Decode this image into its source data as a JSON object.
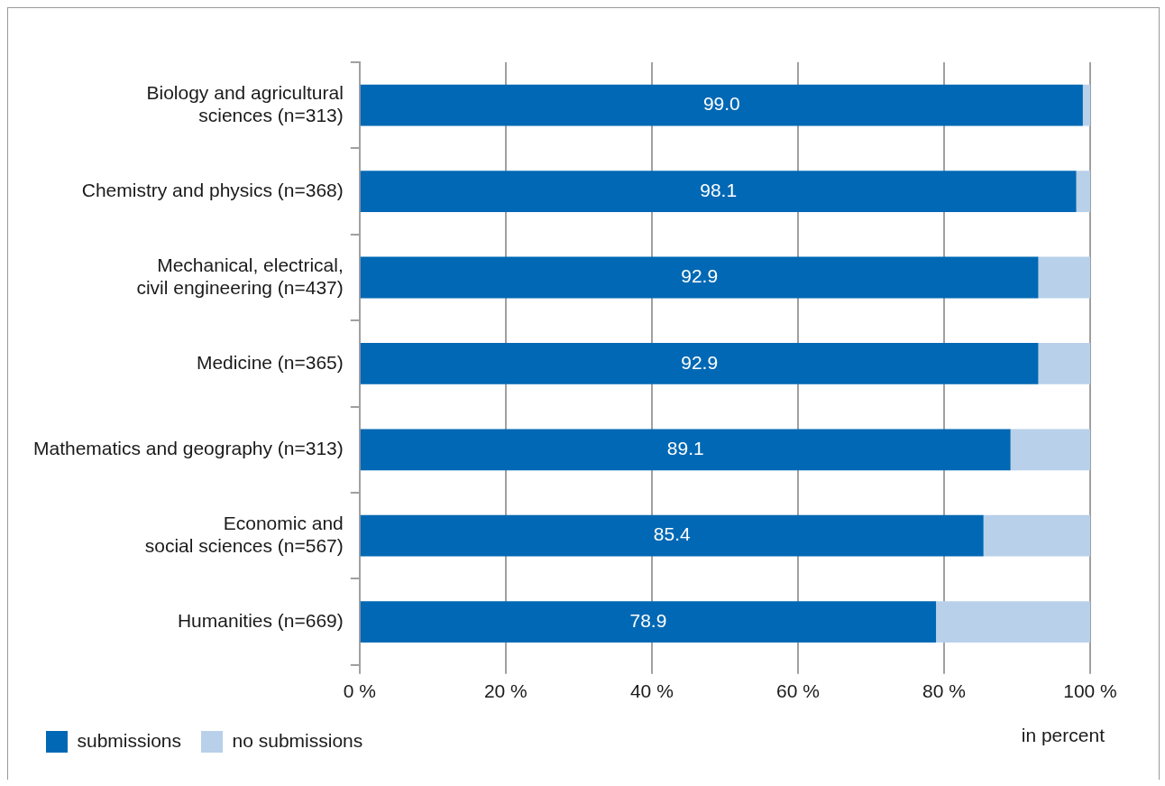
{
  "chart_data": {
    "type": "bar",
    "orientation": "horizontal",
    "stacked": true,
    "categories": [
      "Biology and agricultural\nsciences (n=313)",
      "Chemistry and physics (n=368)",
      "Mechanical, electrical,\ncivil engineering (n=437)",
      "Medicine (n=365)",
      "Mathematics and geography (n=313)",
      "Economic and\nsocial sciences (n=567)",
      "Humanities (n=669)"
    ],
    "series": [
      {
        "name": "submissions",
        "color": "#0068b4",
        "values": [
          99.0,
          98.1,
          92.9,
          92.9,
          89.1,
          85.4,
          78.9
        ],
        "value_labels": [
          "99.0",
          "98.1",
          "92.9",
          "92.9",
          "89.1",
          "85.4",
          "78.9"
        ]
      },
      {
        "name": "no submissions",
        "color": "#b8d0e9",
        "values": [
          1.0,
          1.9,
          7.1,
          7.1,
          10.9,
          14.6,
          21.1
        ]
      }
    ],
    "xlim": [
      0,
      100
    ],
    "xticks": [
      {
        "value": 0,
        "label": "0 %"
      },
      {
        "value": 20,
        "label": "20 %"
      },
      {
        "value": 40,
        "label": "40 %"
      },
      {
        "value": 60,
        "label": "60 %"
      },
      {
        "value": 80,
        "label": "80 %"
      },
      {
        "value": 100,
        "label": "100 %"
      }
    ],
    "grid": "x",
    "legend": "bottom left",
    "annotations": [
      "in percent"
    ]
  }
}
